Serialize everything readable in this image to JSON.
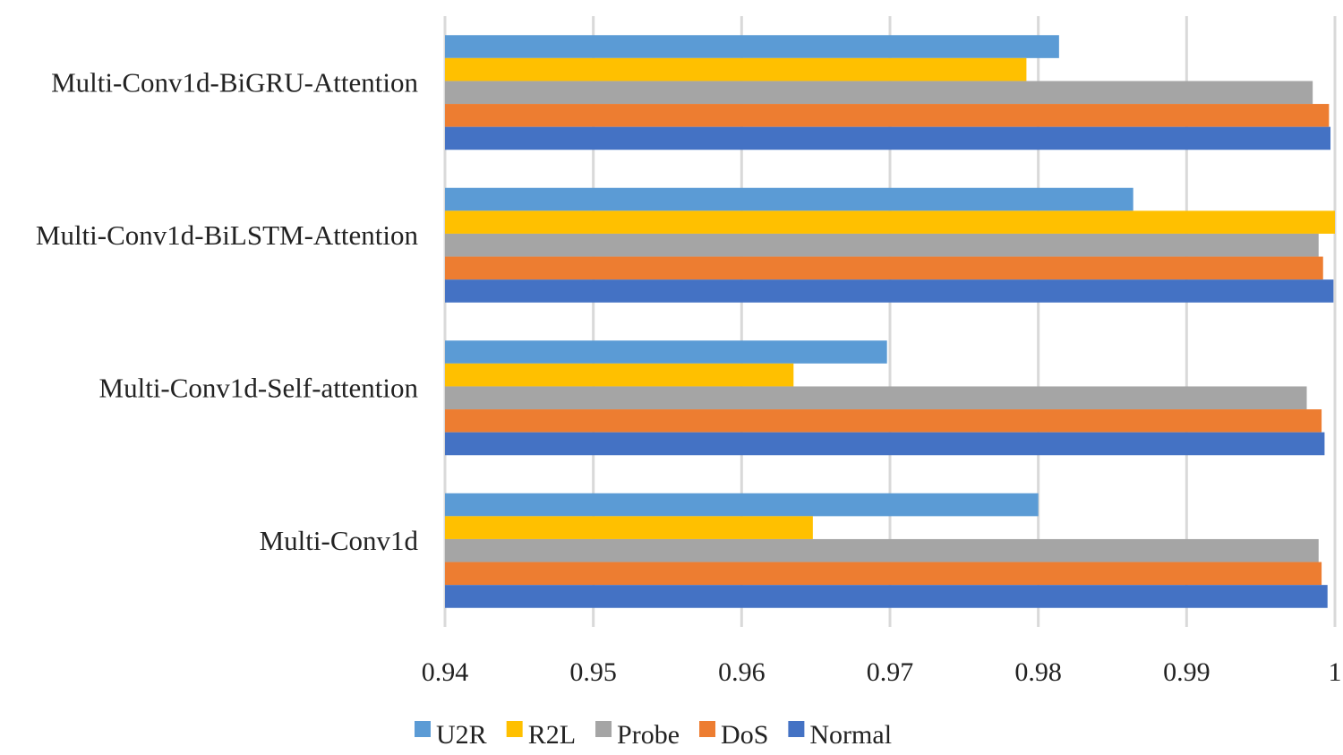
{
  "chart_data": {
    "type": "bar",
    "orientation": "horizontal",
    "title": "",
    "xlabel": "",
    "ylabel": "",
    "xlim": [
      0.94,
      1.0
    ],
    "grid": true,
    "legend_position": "bottom",
    "x_ticks": [
      0.94,
      0.95,
      0.96,
      0.97,
      0.98,
      0.99,
      1.0
    ],
    "x_tick_labels": [
      "0.94",
      "0.95",
      "0.96",
      "0.97",
      "0.98",
      "0.99",
      "1"
    ],
    "categories": [
      "Multi-Conv1d-BiGRU-Attention",
      "Multi-Conv1d-BiLSTM-Attention",
      "Multi-Conv1d-Self-attention",
      "Multi-Conv1d"
    ],
    "series": [
      {
        "name": "U2R",
        "color": "#5b9bd5",
        "values": [
          0.9814,
          0.9864,
          0.9698,
          0.98
        ]
      },
      {
        "name": "R2L",
        "color": "#ffc000",
        "values": [
          0.9792,
          1.0,
          0.9635,
          0.9648
        ]
      },
      {
        "name": "Probe",
        "color": "#a5a5a5",
        "values": [
          0.9985,
          0.9989,
          0.9981,
          0.9989
        ]
      },
      {
        "name": "DoS",
        "color": "#ed7d31",
        "values": [
          0.9996,
          0.9992,
          0.9991,
          0.9991
        ]
      },
      {
        "name": "Normal",
        "color": "#4472c4",
        "values": [
          0.9997,
          0.9999,
          0.9993,
          0.9995
        ]
      }
    ]
  }
}
